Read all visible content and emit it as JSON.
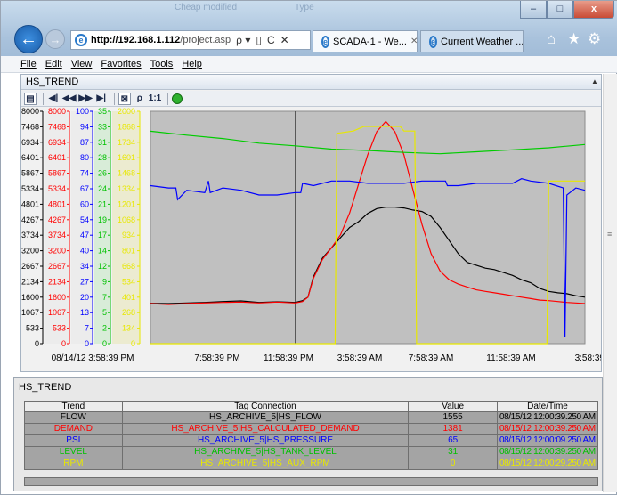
{
  "browser": {
    "faint_title": [
      "Cheap modified",
      "Type"
    ],
    "window_buttons": [
      "–",
      "□",
      "x"
    ],
    "back_label": "←",
    "forward_label": "→",
    "address": {
      "host": "http://192.168.1.112",
      "path": "/project.asp"
    },
    "address_buttons": [
      "ρ ▾",
      "▯",
      "C",
      "✕"
    ],
    "tabs": [
      {
        "label": "SCADA-1 - We...",
        "close": "✕",
        "active": true
      },
      {
        "label": "Current Weather ...",
        "close": "",
        "active": false
      }
    ],
    "toolbar_icons": [
      "home-icon",
      "star-icon",
      "gear-icon"
    ],
    "toolbar_glyphs": [
      "⌂",
      "★",
      "⚙"
    ]
  },
  "menu": [
    "File",
    "Edit",
    "View",
    "Favorites",
    "Tools",
    "Help"
  ],
  "trend_panel": {
    "title": "HS_TREND",
    "toolbar_glyphs": [
      "▤",
      "◀|",
      "◀◀",
      "▶▶",
      "▶|",
      "⊠",
      "ρ",
      "1:1"
    ]
  },
  "chart_data": {
    "type": "line",
    "y_axes": [
      {
        "color": "#000000",
        "ticks": [
          "8000",
          "7468",
          "6934",
          "6401",
          "5867",
          "5334",
          "4801",
          "4267",
          "3734",
          "3200",
          "2667",
          "2134",
          "1600",
          "1067",
          "533",
          "0"
        ]
      },
      {
        "color": "#ff0000",
        "ticks": [
          "8000",
          "7468",
          "6934",
          "6401",
          "5867",
          "5334",
          "4801",
          "4267",
          "3734",
          "3200",
          "2667",
          "2134",
          "1600",
          "1067",
          "533",
          "0"
        ]
      },
      {
        "color": "#0000ff",
        "ticks": [
          "100",
          "94",
          "87",
          "80",
          "74",
          "67",
          "60",
          "54",
          "47",
          "40",
          "34",
          "27",
          "20",
          "13",
          "7",
          "0"
        ]
      },
      {
        "color": "#00c000",
        "ticks": [
          "35",
          "33",
          "31",
          "28",
          "26",
          "24",
          "21",
          "19",
          "17",
          "14",
          "12",
          "9",
          "7",
          "5",
          "2",
          "0"
        ]
      },
      {
        "color": "#e8e800",
        "ticks": [
          "2000",
          "1868",
          "1734",
          "1601",
          "1468",
          "1334",
          "1201",
          "1068",
          "934",
          "801",
          "668",
          "534",
          "401",
          "268",
          "134",
          "0"
        ]
      }
    ],
    "x_ticks": [
      "08/14/12 3:58:39 PM",
      "7:58:39 PM",
      "11:58:39 PM",
      "3:58:39 AM",
      "7:58:39 AM",
      "11:58:39 AM",
      "3:58:39 P"
    ],
    "x_range": [
      0,
      24
    ],
    "cursor_x": 8,
    "series": [
      {
        "name": "FLOW",
        "color": "#000000",
        "axis": 0,
        "x": [
          0,
          1,
          2,
          3,
          4,
          5,
          6,
          7,
          8,
          8.4,
          8.7,
          9,
          9.5,
          10,
          10.5,
          11,
          11.5,
          12,
          12.5,
          13,
          13.5,
          14,
          14.5,
          15,
          15.5,
          16,
          16.5,
          17,
          17.5,
          18,
          18.5,
          19,
          19.5,
          20,
          20.5,
          21,
          21.5,
          22,
          22.5,
          23,
          23.5,
          24
        ],
        "y": [
          1390,
          1380,
          1400,
          1420,
          1450,
          1470,
          1420,
          1440,
          1420,
          1480,
          1600,
          2300,
          2950,
          3300,
          3650,
          4000,
          4200,
          4480,
          4650,
          4700,
          4700,
          4670,
          4600,
          4550,
          4380,
          4000,
          3550,
          3100,
          2800,
          2700,
          2600,
          2550,
          2450,
          2350,
          2200,
          2100,
          1900,
          1800,
          1750,
          1720,
          1650,
          1600
        ]
      },
      {
        "name": "DEMAND",
        "color": "#ff0000",
        "axis": 1,
        "x": [
          0,
          1,
          2,
          3,
          4,
          5,
          6,
          7,
          8,
          8.4,
          8.7,
          9,
          9.5,
          10,
          10.5,
          11,
          11.5,
          12,
          12.5,
          13,
          13.5,
          14,
          14.5,
          15,
          15.5,
          16,
          16.5,
          17,
          17.5,
          18,
          18.5,
          19,
          19.5,
          20,
          20.5,
          21,
          21.5,
          22,
          22.5,
          23,
          23.5,
          24
        ],
        "y": [
          1380,
          1350,
          1380,
          1400,
          1420,
          1430,
          1400,
          1430,
          1400,
          1450,
          1600,
          2250,
          2900,
          3300,
          3750,
          4500,
          5500,
          6500,
          7300,
          7650,
          7300,
          6500,
          5300,
          4100,
          3100,
          2500,
          2200,
          2050,
          1950,
          1850,
          1800,
          1750,
          1700,
          1650,
          1600,
          1550,
          1500,
          1480,
          1450,
          1420,
          1400,
          1380
        ]
      },
      {
        "name": "PSI",
        "color": "#0000ff",
        "axis": 2,
        "x": [
          0,
          1,
          1.4,
          1.5,
          2,
          3,
          3.2,
          3.3,
          4,
          5,
          6,
          7,
          8,
          8.3,
          8.4,
          9,
          10,
          11,
          12,
          13,
          14,
          15,
          16,
          16.3,
          16.4,
          17,
          18,
          19,
          20,
          20.5,
          21,
          22,
          22.8,
          22.9,
          23,
          23.5,
          24
        ],
        "y": [
          68,
          67,
          67,
          62,
          66,
          65,
          70,
          65,
          67,
          66,
          64,
          64,
          65,
          65,
          69,
          68,
          70,
          70,
          69,
          69,
          69,
          70,
          70,
          70,
          68,
          68,
          69,
          69,
          69,
          71,
          70,
          69,
          67,
          3,
          64,
          67,
          66
        ]
      },
      {
        "name": "LEVEL",
        "color": "#00cc00",
        "axis": 3,
        "x": [
          0,
          2,
          4,
          6,
          8,
          10,
          12,
          14,
          16,
          18,
          20,
          22,
          24
        ],
        "y": [
          32,
          31.4,
          30.9,
          30.2,
          29.8,
          29.3,
          29.1,
          28.8,
          28.6,
          28.9,
          29.2,
          29.5,
          30
        ]
      },
      {
        "name": "RPM",
        "color": "#e8e800",
        "axis": 4,
        "x": [
          0,
          7.2,
          7.3,
          7.6,
          7.7,
          10.2,
          10.3,
          11.2,
          11.8,
          13.8,
          14,
          14.6,
          14.7,
          21.9,
          22,
          24
        ],
        "y": [
          0,
          0,
          0,
          0,
          0,
          0,
          1810,
          1830,
          1870,
          1870,
          1830,
          1830,
          0,
          0,
          1400,
          1400
        ]
      }
    ]
  },
  "tag_grid": {
    "title": "HS_TREND",
    "headers": [
      "Trend",
      "Tag Connection",
      "Value",
      "Date/Time"
    ],
    "rows": [
      {
        "trend": "FLOW",
        "tag": "HS_ARCHIVE_5|HS_FLOW",
        "value": "1555",
        "date": "08/15/12 12:00:39.250 AM",
        "color": "#000000"
      },
      {
        "trend": "DEMAND",
        "tag": "HS_ARCHIVE_5|HS_CALCULATED_DEMAND",
        "value": "1381",
        "date": "08/15/12 12:00:39.250 AM",
        "color": "#ff0000"
      },
      {
        "trend": "PSI",
        "tag": "HS_ARCHIVE_5|HS_PRESSURE",
        "value": "65",
        "date": "08/15/12 12:00:09.250 AM",
        "color": "#0000ff"
      },
      {
        "trend": "LEVEL",
        "tag": "HS_ARCHIVE_5|HS_TANK_LEVEL",
        "value": "31",
        "date": "08/15/12 12:00:39.250 AM",
        "color": "#00c000"
      },
      {
        "trend": "RPM",
        "tag": "HS_ARCHIVE_5|HS_AUX_RPM",
        "value": "0",
        "date": "08/15/12 12:00:29.250 AM",
        "color": "#e8e800"
      }
    ]
  }
}
